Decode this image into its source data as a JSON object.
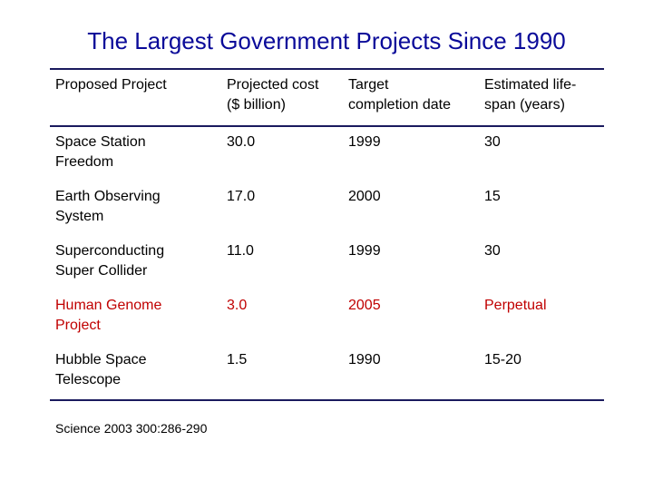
{
  "title": "The Largest Government Projects  Since 1990",
  "table": {
    "headers": [
      [
        "Proposed Project"
      ],
      [
        "Projected cost",
        "($ billion)"
      ],
      [
        "Target",
        "completion date"
      ],
      [
        "Estimated life-",
        "span (years)"
      ]
    ],
    "rows": [
      {
        "project": [
          "Space Station",
          "Freedom"
        ],
        "cost": "30.0",
        "completion": "1999",
        "lifespan": "30",
        "highlight": false
      },
      {
        "project": [
          "Earth Observing",
          "System"
        ],
        "cost": "17.0",
        "completion": "2000",
        "lifespan": "15",
        "highlight": false
      },
      {
        "project": [
          "Superconducting",
          "Super Collider"
        ],
        "cost": "11.0",
        "completion": "1999",
        "lifespan": "30",
        "highlight": false
      },
      {
        "project": [
          "Human Genome",
          "Project"
        ],
        "cost": "3.0",
        "completion": "2005",
        "lifespan": "Perpetual",
        "highlight": true
      },
      {
        "project": [
          "Hubble Space",
          "Telescope"
        ],
        "cost": "1.5",
        "completion": "1990",
        "lifespan": "15-20",
        "highlight": false
      }
    ]
  },
  "source": "Science 2003 300:286-290",
  "colors": {
    "title": "#0a0a99",
    "highlight": "#c00000",
    "rule": "#1a1a5e"
  }
}
